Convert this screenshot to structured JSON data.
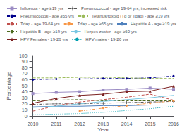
{
  "chart_data": {
    "type": "line",
    "x": [
      2010,
      2011,
      2012,
      2013,
      2014,
      2015,
      2016
    ],
    "xlabel": "Year",
    "ylabel": "Percentage",
    "xlim": [
      2010,
      2016
    ],
    "xticks": [
      2010,
      2011,
      2012,
      2013,
      2014,
      2015,
      2016
    ],
    "ylim": [
      0,
      100
    ],
    "yticks": [
      0,
      10,
      20,
      30,
      40,
      50,
      60,
      70,
      80,
      90,
      100
    ],
    "grid": false,
    "legend": "top",
    "series": [
      {
        "name": "Influenza - age ≥19 yrs",
        "color": "#9b8cc4",
        "line_style": "solid",
        "marker": "square",
        "values": [
          37,
          39,
          40,
          43,
          44,
          46,
          44
        ]
      },
      {
        "name": "Pneumococcal - age 19-64 yrs, increased risk",
        "color": "#555555",
        "line_style": "dashdot",
        "marker": "plus",
        "values": [
          19,
          20,
          20,
          21,
          22,
          23,
          24
        ]
      },
      {
        "name": "Pneumococcal - age ≥65 yrs",
        "color": "#00008b",
        "line_style": "dashdot",
        "marker": "point",
        "values": [
          60,
          61,
          61,
          62,
          62,
          63,
          66
        ]
      },
      {
        "name": "Tetanus/toxoid (Td or Tdap) - age ≥19 yrs",
        "color": "#9bbb59",
        "line_style": "dashed",
        "values": [
          63,
          63,
          64,
          64,
          63,
          62,
          62
        ]
      },
      {
        "name": "Tdap - age 19-64 yrs",
        "color": "#c0504d",
        "line_style": "dashed",
        "values": [
          8,
          17,
          23,
          27,
          31,
          36,
          26
        ]
      },
      {
        "name": "Tdap - age ≥65 yrs",
        "color": "#f79646",
        "line_style": "dashdot",
        "marker": "point",
        "values": [
          null,
          null,
          8,
          13,
          17,
          21,
          25
        ]
      },
      {
        "name": "Hepatitis A - age ≥19 yrs",
        "color": "#4f81bd",
        "line_style": "solid",
        "values": [
          15,
          16,
          16,
          17,
          17,
          18,
          18
        ]
      },
      {
        "name": "Hepatitis B - age ≥19 yrs",
        "color": "#4e6b20",
        "line_style": "dashed",
        "values": [
          25,
          26,
          27,
          25,
          25,
          25,
          25
        ]
      },
      {
        "name": "Herpes zoster - age ≥60 yrs",
        "color": "#7ac7e2",
        "line_style": "solid",
        "values": [
          14,
          16,
          20,
          24,
          27,
          30,
          34
        ]
      },
      {
        "name": "HPV Females - 19-26 yrs",
        "color": "#7b2020",
        "line_style": "solid",
        "marker": "triangle",
        "values": [
          21,
          29,
          34,
          36,
          40,
          41,
          49
        ]
      },
      {
        "name": "HPV males - 19-26 yrs",
        "color": "#00a0b0",
        "line_style": "dotted",
        "values": [
          2,
          3,
          4,
          6,
          9,
          12,
          16
        ]
      }
    ]
  }
}
